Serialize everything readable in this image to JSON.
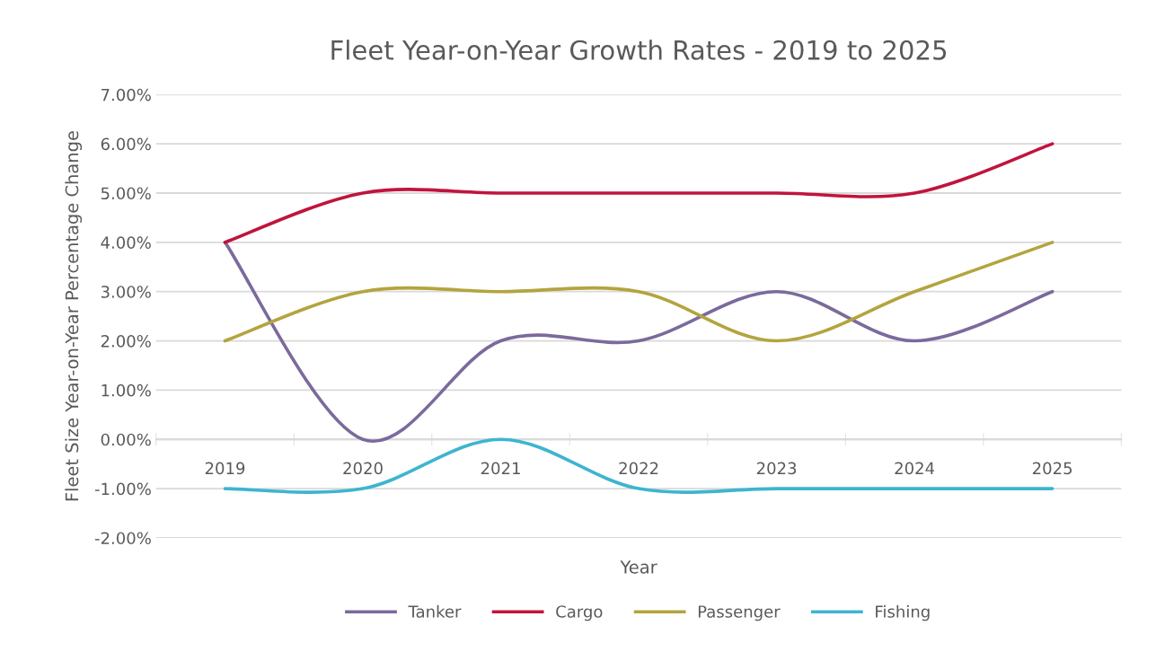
{
  "chart_data": {
    "type": "line",
    "title": "Fleet Year-on-Year Growth Rates - 2019 to 2025",
    "xlabel": "Year",
    "ylabel": "Fleet Size Year-on-Year Percentage Change",
    "categories": [
      "2019",
      "2020",
      "2021",
      "2022",
      "2023",
      "2024",
      "2025"
    ],
    "series": [
      {
        "name": "Tanker",
        "color": "#7b6a9c",
        "values": [
          4,
          0,
          2,
          2,
          3,
          2,
          3
        ]
      },
      {
        "name": "Cargo",
        "color": "#c0143c",
        "values": [
          4,
          5,
          5,
          5,
          5,
          5,
          6
        ]
      },
      {
        "name": "Passenger",
        "color": "#b3a43f",
        "values": [
          2,
          3,
          3,
          3,
          2,
          3,
          4
        ]
      },
      {
        "name": "Fishing",
        "color": "#3db5cf",
        "values": [
          -1,
          -1,
          0,
          -1,
          -1,
          -1,
          -1
        ]
      }
    ],
    "ylim": [
      -2,
      7
    ],
    "yticks": [
      {
        "value": -2,
        "label": "-2.00%"
      },
      {
        "value": -1,
        "label": "-1.00%"
      },
      {
        "value": 0,
        "label": "0.00%"
      },
      {
        "value": 1,
        "label": "1.00%"
      },
      {
        "value": 2,
        "label": "2.00%"
      },
      {
        "value": 3,
        "label": "3.00%"
      },
      {
        "value": 4,
        "label": "4.00%"
      },
      {
        "value": 5,
        "label": "5.00%"
      },
      {
        "value": 6,
        "label": "6.00%"
      },
      {
        "value": 7,
        "label": "7.00%"
      }
    ],
    "grid": "y",
    "legend": "bottom",
    "marker": "none",
    "line_style": "solid"
  }
}
